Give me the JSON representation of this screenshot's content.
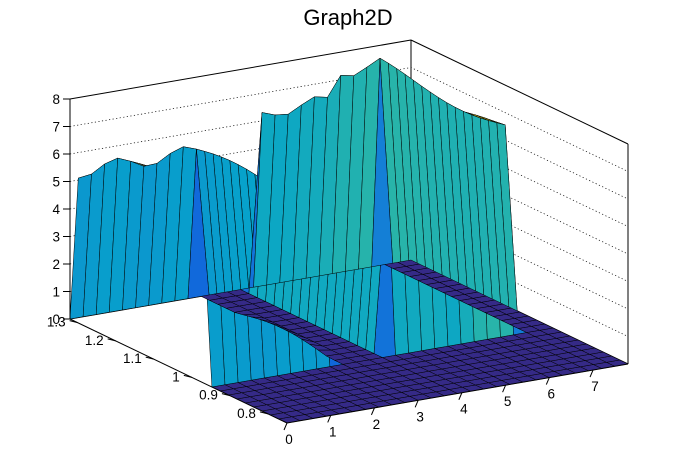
{
  "chart_data": {
    "type": "surface",
    "title": "Graph2D",
    "xlabel": "",
    "ylabel": "",
    "zlabel": "",
    "x_range": [
      0,
      7.8
    ],
    "y_range": [
      0.75,
      1.32
    ],
    "z_range": [
      0,
      8
    ],
    "x_ticks": [
      "0",
      "1",
      "2",
      "3",
      "4",
      "5",
      "6",
      "7"
    ],
    "y_ticks": [
      "0.8",
      "0.9",
      "1",
      "1.1",
      "1.2",
      "1.3"
    ],
    "z_ticks": [
      "0",
      "1",
      "2",
      "3",
      "4",
      "5",
      "6",
      "7",
      "8"
    ],
    "grid": true,
    "palette": [
      "#352a87",
      "#0f5cdd",
      "#1481d6",
      "#06a4ca",
      "#2eb7a4",
      "#87bf77",
      "#d1bb59",
      "#fec832",
      "#f9fb0e"
    ],
    "surface_regions": [
      {
        "region": "x 0-3, y 0.95-1.30",
        "z_approx": 5.5
      },
      {
        "region": "x 3-4.2, y 0.75-1.30",
        "z_approx": 0
      },
      {
        "region": "x 4.2-7.0, y 0.95-1.30",
        "z_approx": 6.5,
        "z_peak": 7.5
      },
      {
        "region": "x 4.2-7.8, y 0.75-0.95",
        "z_approx": 0
      }
    ]
  }
}
